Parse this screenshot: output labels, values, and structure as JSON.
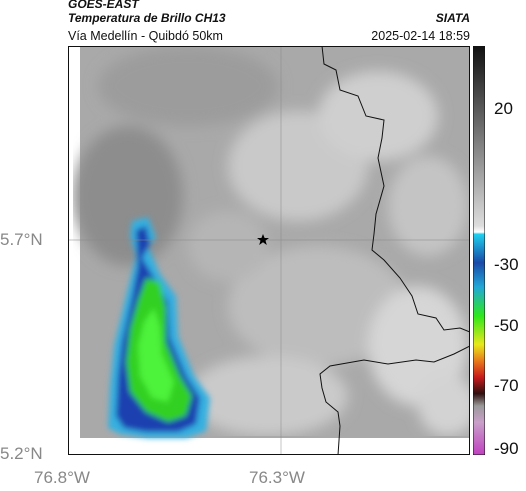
{
  "header": {
    "satellite": "GOES-EAST",
    "product": "Temperatura de Brillo CH13",
    "region": "Vía Medellín - Quibdó 50km",
    "agency": "SIATA",
    "timestamp": "2025-02-14 18:59"
  },
  "axes": {
    "lat_labels": [
      "5.7°N",
      "5.2°N"
    ],
    "lon_labels": [
      "76.8°W",
      "76.3°W"
    ]
  },
  "colorbar": {
    "ticks": [
      "20",
      "-30",
      "-50",
      "-70",
      "-90"
    ],
    "colors": {
      "bw_top": "#111111",
      "bw_mid": "#dddddd",
      "blue": "#1a4aa8",
      "cyan": "#2ab8e8",
      "green": "#2ee81c",
      "yellow": "#e8e81c",
      "orange": "#e87a1c",
      "red": "#c81c1c",
      "dark": "#301010",
      "magenta": "#c040c0"
    }
  },
  "map": {
    "marker": "star",
    "colors": {
      "background_gray": "#a9a9a9",
      "cloud_light": "#d9d9d9",
      "storm_edge": "#35b0e0",
      "storm_blue": "#1f3fb0",
      "storm_green": "#30d020",
      "border": "#111111"
    }
  }
}
